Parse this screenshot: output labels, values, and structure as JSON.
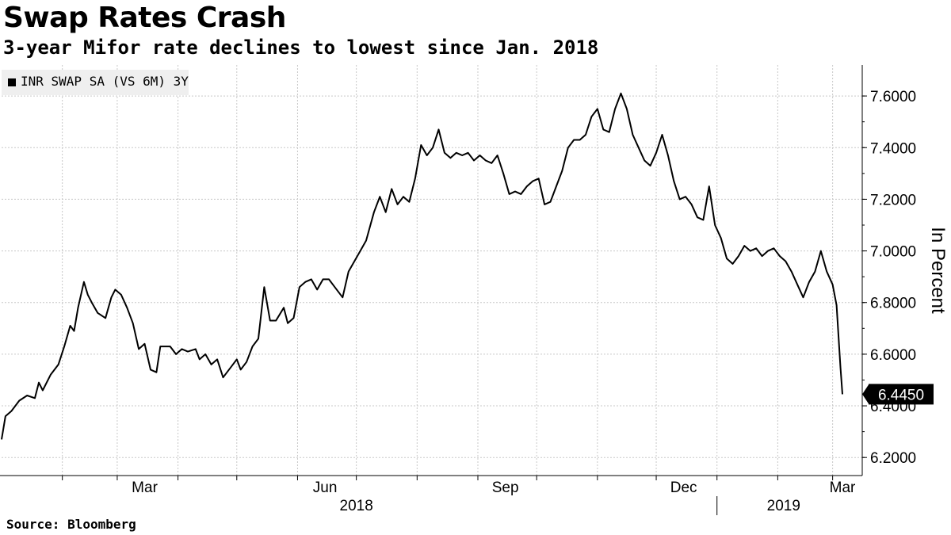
{
  "title": "Swap Rates Crash",
  "subtitle": "3-year Mifor rate declines to lowest since Jan. 2018",
  "source": "Source: Bloomberg",
  "chart_data": {
    "type": "line",
    "title": "Swap Rates Crash",
    "subtitle": "3-year Mifor rate declines to lowest since Jan. 2018",
    "ylabel": "In Percent",
    "ylim": [
      6.13,
      7.72
    ],
    "y_ticks": [
      6.2,
      6.4,
      6.6,
      6.8,
      7.0,
      7.2,
      7.4,
      7.6
    ],
    "y_tick_labels": [
      "6.2000",
      "6.4000",
      "6.6000",
      "6.8000",
      "7.0000",
      "7.2000",
      "7.4000",
      "7.6000"
    ],
    "x_range": [
      "2018-01-01",
      "2019-03-08"
    ],
    "x_month_labels": [
      {
        "date": "2018-03-15",
        "label": "Mar"
      },
      {
        "date": "2018-06-15",
        "label": "Jun"
      },
      {
        "date": "2018-09-15",
        "label": "Sep"
      },
      {
        "date": "2018-12-15",
        "label": "Dec"
      },
      {
        "date": "2019-03-06",
        "label": "Mar"
      }
    ],
    "x_year_labels": [
      {
        "date": "2018-07-01",
        "label": "2018"
      },
      {
        "date": "2019-02-04",
        "label": "2019"
      }
    ],
    "grid": true,
    "legend_position": "top-left",
    "last_value_label": "6.4450",
    "series": [
      {
        "name": "INR SWAP SA (VS 6M) 3Y",
        "color": "#000000",
        "points": [
          [
            "2018-01-01",
            6.27
          ],
          [
            "2018-01-03",
            6.36
          ],
          [
            "2018-01-06",
            6.38
          ],
          [
            "2018-01-10",
            6.42
          ],
          [
            "2018-01-14",
            6.44
          ],
          [
            "2018-01-18",
            6.43
          ],
          [
            "2018-01-20",
            6.49
          ],
          [
            "2018-01-22",
            6.46
          ],
          [
            "2018-01-26",
            6.52
          ],
          [
            "2018-01-30",
            6.56
          ],
          [
            "2018-02-02",
            6.63
          ],
          [
            "2018-02-05",
            6.71
          ],
          [
            "2018-02-07",
            6.69
          ],
          [
            "2018-02-09",
            6.78
          ],
          [
            "2018-02-12",
            6.88
          ],
          [
            "2018-02-14",
            6.83
          ],
          [
            "2018-02-16",
            6.8
          ],
          [
            "2018-02-19",
            6.76
          ],
          [
            "2018-02-23",
            6.74
          ],
          [
            "2018-02-26",
            6.82
          ],
          [
            "2018-02-28",
            6.85
          ],
          [
            "2018-03-03",
            6.83
          ],
          [
            "2018-03-06",
            6.78
          ],
          [
            "2018-03-09",
            6.72
          ],
          [
            "2018-03-12",
            6.62
          ],
          [
            "2018-03-15",
            6.64
          ],
          [
            "2018-03-18",
            6.54
          ],
          [
            "2018-03-21",
            6.53
          ],
          [
            "2018-03-23",
            6.63
          ],
          [
            "2018-03-28",
            6.63
          ],
          [
            "2018-03-31",
            6.6
          ],
          [
            "2018-04-03",
            6.62
          ],
          [
            "2018-04-06",
            6.61
          ],
          [
            "2018-04-10",
            6.62
          ],
          [
            "2018-04-12",
            6.58
          ],
          [
            "2018-04-15",
            6.6
          ],
          [
            "2018-04-18",
            6.56
          ],
          [
            "2018-04-21",
            6.58
          ],
          [
            "2018-04-24",
            6.51
          ],
          [
            "2018-04-28",
            6.55
          ],
          [
            "2018-05-01",
            6.58
          ],
          [
            "2018-05-03",
            6.54
          ],
          [
            "2018-05-06",
            6.57
          ],
          [
            "2018-05-09",
            6.63
          ],
          [
            "2018-05-12",
            6.66
          ],
          [
            "2018-05-15",
            6.86
          ],
          [
            "2018-05-18",
            6.73
          ],
          [
            "2018-05-21",
            6.73
          ],
          [
            "2018-05-25",
            6.78
          ],
          [
            "2018-05-27",
            6.72
          ],
          [
            "2018-05-30",
            6.74
          ],
          [
            "2018-06-02",
            6.86
          ],
          [
            "2018-06-05",
            6.88
          ],
          [
            "2018-06-08",
            6.89
          ],
          [
            "2018-06-11",
            6.85
          ],
          [
            "2018-06-14",
            6.89
          ],
          [
            "2018-06-17",
            6.89
          ],
          [
            "2018-06-20",
            6.86
          ],
          [
            "2018-06-24",
            6.82
          ],
          [
            "2018-06-27",
            6.92
          ],
          [
            "2018-06-30",
            6.96
          ],
          [
            "2018-07-03",
            7.0
          ],
          [
            "2018-07-06",
            7.04
          ],
          [
            "2018-07-10",
            7.15
          ],
          [
            "2018-07-13",
            7.21
          ],
          [
            "2018-07-16",
            7.15
          ],
          [
            "2018-07-19",
            7.24
          ],
          [
            "2018-07-22",
            7.18
          ],
          [
            "2018-07-25",
            7.21
          ],
          [
            "2018-07-28",
            7.19
          ],
          [
            "2018-07-31",
            7.28
          ],
          [
            "2018-08-03",
            7.41
          ],
          [
            "2018-08-06",
            7.37
          ],
          [
            "2018-08-09",
            7.4
          ],
          [
            "2018-08-12",
            7.47
          ],
          [
            "2018-08-15",
            7.38
          ],
          [
            "2018-08-18",
            7.36
          ],
          [
            "2018-08-21",
            7.38
          ],
          [
            "2018-08-24",
            7.37
          ],
          [
            "2018-08-27",
            7.38
          ],
          [
            "2018-08-30",
            7.35
          ],
          [
            "2018-09-02",
            7.37
          ],
          [
            "2018-09-05",
            7.35
          ],
          [
            "2018-09-08",
            7.34
          ],
          [
            "2018-09-11",
            7.37
          ],
          [
            "2018-09-14",
            7.3
          ],
          [
            "2018-09-17",
            7.22
          ],
          [
            "2018-09-20",
            7.23
          ],
          [
            "2018-09-23",
            7.22
          ],
          [
            "2018-09-26",
            7.25
          ],
          [
            "2018-09-29",
            7.27
          ],
          [
            "2018-10-02",
            7.28
          ],
          [
            "2018-10-05",
            7.18
          ],
          [
            "2018-10-08",
            7.19
          ],
          [
            "2018-10-11",
            7.25
          ],
          [
            "2018-10-14",
            7.31
          ],
          [
            "2018-10-17",
            7.4
          ],
          [
            "2018-10-20",
            7.43
          ],
          [
            "2018-10-23",
            7.43
          ],
          [
            "2018-10-26",
            7.45
          ],
          [
            "2018-10-29",
            7.52
          ],
          [
            "2018-11-01",
            7.55
          ],
          [
            "2018-11-04",
            7.47
          ],
          [
            "2018-11-07",
            7.46
          ],
          [
            "2018-11-10",
            7.55
          ],
          [
            "2018-11-13",
            7.61
          ],
          [
            "2018-11-16",
            7.55
          ],
          [
            "2018-11-19",
            7.45
          ],
          [
            "2018-11-22",
            7.4
          ],
          [
            "2018-11-25",
            7.35
          ],
          [
            "2018-11-28",
            7.33
          ],
          [
            "2018-12-01",
            7.38
          ],
          [
            "2018-12-04",
            7.45
          ],
          [
            "2018-12-07",
            7.37
          ],
          [
            "2018-12-10",
            7.27
          ],
          [
            "2018-12-13",
            7.2
          ],
          [
            "2018-12-16",
            7.21
          ],
          [
            "2018-12-19",
            7.18
          ],
          [
            "2018-12-22",
            7.13
          ],
          [
            "2018-12-25",
            7.12
          ],
          [
            "2018-12-28",
            7.25
          ],
          [
            "2018-12-31",
            7.1
          ],
          [
            "2019-01-03",
            7.05
          ],
          [
            "2019-01-06",
            6.97
          ],
          [
            "2019-01-09",
            6.95
          ],
          [
            "2019-01-12",
            6.98
          ],
          [
            "2019-01-15",
            7.02
          ],
          [
            "2019-01-18",
            7.0
          ],
          [
            "2019-01-21",
            7.01
          ],
          [
            "2019-01-24",
            6.98
          ],
          [
            "2019-01-27",
            7.0
          ],
          [
            "2019-01-30",
            7.01
          ],
          [
            "2019-02-02",
            6.98
          ],
          [
            "2019-02-05",
            6.96
          ],
          [
            "2019-02-08",
            6.92
          ],
          [
            "2019-02-11",
            6.87
          ],
          [
            "2019-02-14",
            6.82
          ],
          [
            "2019-02-17",
            6.88
          ],
          [
            "2019-02-20",
            6.92
          ],
          [
            "2019-02-23",
            7.0
          ],
          [
            "2019-02-26",
            6.92
          ],
          [
            "2019-03-01",
            6.87
          ],
          [
            "2019-03-03",
            6.79
          ],
          [
            "2019-03-05",
            6.55
          ],
          [
            "2019-03-06",
            6.445
          ]
        ]
      }
    ]
  }
}
